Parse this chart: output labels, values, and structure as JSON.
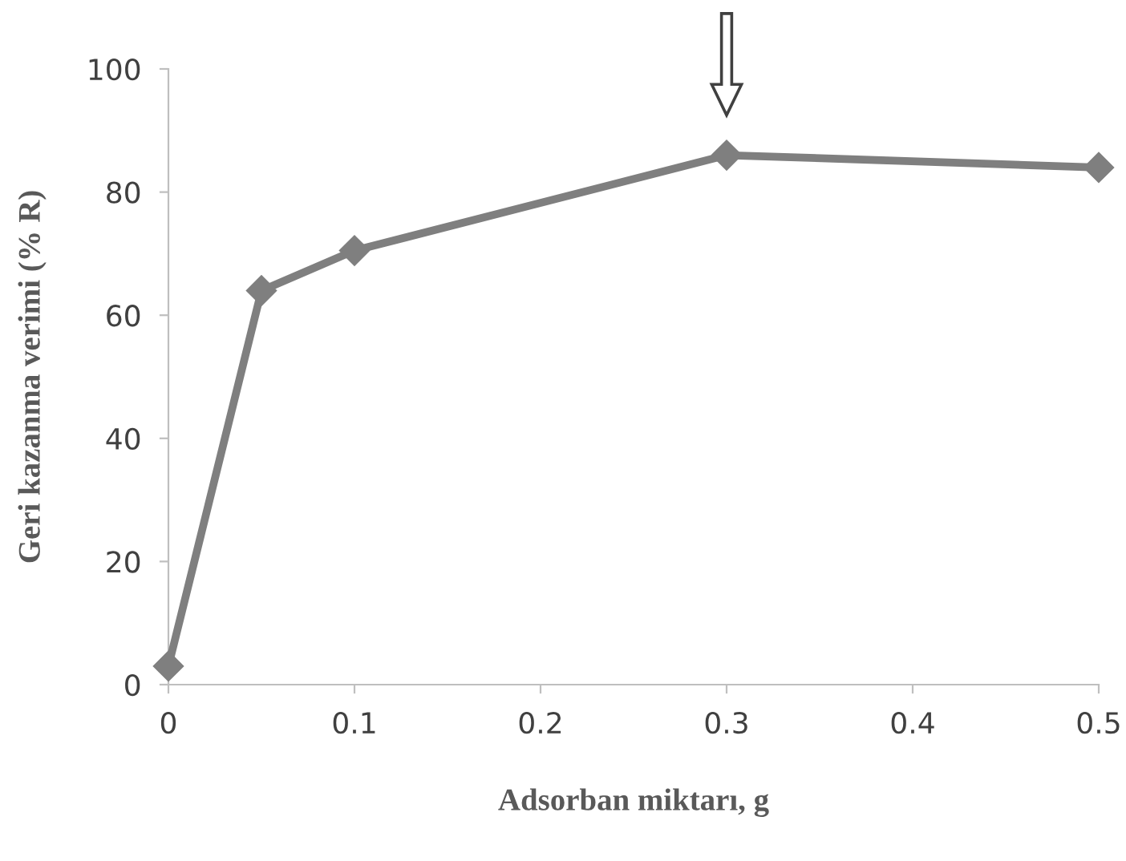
{
  "chart_data": {
    "type": "line",
    "xlabel": "Adsorban miktarı, g",
    "ylabel": "Geri kazanma verimi (% R)",
    "x": [
      0,
      0.05,
      0.1,
      0.3,
      0.5
    ],
    "series": [
      {
        "color": "#7f7f7f",
        "values": [
          3,
          64,
          70.5,
          86,
          84
        ]
      }
    ],
    "xlim": [
      0,
      0.5
    ],
    "xticks": [
      0,
      0.1,
      0.2,
      0.3,
      0.4,
      0.5
    ],
    "ylim": [
      0,
      100
    ],
    "yticks": [
      0,
      20,
      40,
      60,
      80,
      100
    ],
    "grid": false,
    "legend": false,
    "marker": "diamond",
    "line_style": "solid"
  }
}
